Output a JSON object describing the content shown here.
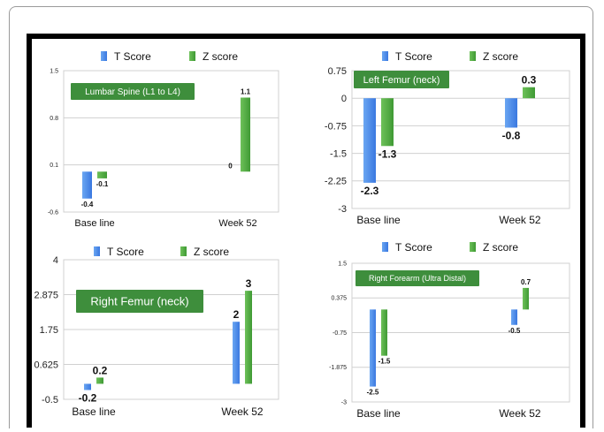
{
  "colors": {
    "t_score": "#3a78e0",
    "z_score": "#3f9a34",
    "label_bg": "#3e8e3c",
    "label_text": "#ffffff",
    "grid": "#d0d0d0"
  },
  "chart_data": [
    {
      "type": "bar",
      "title": "Lumbar Spine (L1 to L4)",
      "categories": [
        "Base line",
        "Week 52"
      ],
      "series": [
        {
          "name": "T Score",
          "values": [
            -0.4,
            0
          ],
          "labels": [
            "-0.4",
            "0"
          ]
        },
        {
          "name": "Z score",
          "values": [
            -0.1,
            1.1
          ],
          "labels": [
            "-0.1",
            "1.1"
          ]
        }
      ],
      "yticks": [
        "1.5",
        "0.8",
        "0.1",
        "-0.6"
      ],
      "ylim": [
        -0.6,
        1.5
      ],
      "legend": "top"
    },
    {
      "type": "bar",
      "title": "Left Femur (neck)",
      "categories": [
        "Base line",
        "Week 52"
      ],
      "series": [
        {
          "name": "T Score",
          "values": [
            -2.3,
            -0.8
          ],
          "labels": [
            "-2.3",
            "-0.8"
          ]
        },
        {
          "name": "Z score",
          "values": [
            -1.3,
            0.3
          ],
          "labels": [
            "-1.3",
            "0.3"
          ]
        }
      ],
      "yticks": [
        "0.75",
        "0",
        "-0.75",
        "-1.5",
        "-2.25",
        "-3"
      ],
      "ylim": [
        -3,
        0.75
      ],
      "legend": "top"
    },
    {
      "type": "bar",
      "title": "Right Femur (neck)",
      "categories": [
        "Base line",
        "Week 52"
      ],
      "series": [
        {
          "name": "T Score",
          "values": [
            -0.2,
            2
          ],
          "labels": [
            "-0.2",
            "2"
          ]
        },
        {
          "name": "Z score",
          "values": [
            0.2,
            3
          ],
          "labels": [
            "0.2",
            "3"
          ]
        }
      ],
      "yticks": [
        "4",
        "2.875",
        "1.75",
        "0.625",
        "-0.5"
      ],
      "ylim": [
        -0.5,
        4
      ],
      "legend": "top"
    },
    {
      "type": "bar",
      "title": "Right Forearm (Ultra Distal)",
      "categories": [
        "Base line",
        "Week 52"
      ],
      "series": [
        {
          "name": "T Score",
          "values": [
            -2.5,
            -0.5
          ],
          "labels": [
            "-2.5",
            "-0.5"
          ]
        },
        {
          "name": "Z score",
          "values": [
            -1.5,
            0.7
          ],
          "labels": [
            "-1.5",
            "0.7"
          ]
        }
      ],
      "yticks": [
        "1.5",
        "0.375",
        "-0.75",
        "-1.875",
        "-3"
      ],
      "ylim": [
        -3,
        1.5
      ],
      "legend": "top"
    }
  ]
}
